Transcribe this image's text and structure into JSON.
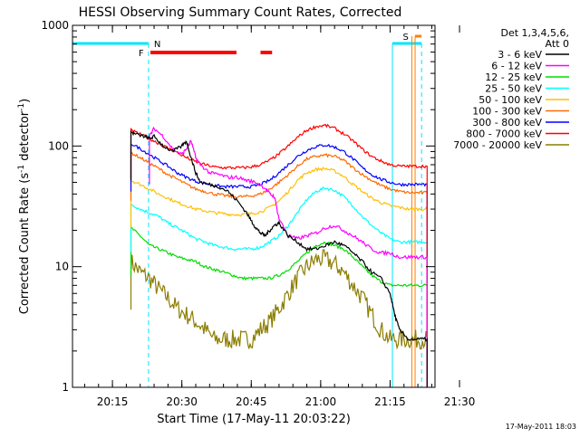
{
  "chart_data": {
    "type": "line",
    "title": "HESSI Observing Summary Count Rates, Corrected",
    "xlabel": "Start Time (17-May-11 20:03:22)",
    "ylabel_main": "Corrected Count Rate (s",
    "ylabel_sup1": "-1",
    "ylabel_mid": " detector",
    "ylabel_sup2": "-1",
    "ylabel_end": ")",
    "yscale": "log",
    "ylim": [
      1,
      1000
    ],
    "xlim_min": [
      3.37,
      81.7
    ],
    "x_ticks": [
      {
        "v": 12,
        "label": "20:15"
      },
      {
        "v": 27,
        "label": "20:30"
      },
      {
        "v": 42,
        "label": "20:45"
      },
      {
        "v": 57,
        "label": "21:00"
      },
      {
        "v": 72,
        "label": "21:15"
      },
      {
        "v": 87,
        "label": "21:30"
      }
    ],
    "y_ticks": [
      {
        "v": 1,
        "label": "1"
      },
      {
        "v": 10,
        "label": "10"
      },
      {
        "v": 100,
        "label": "100"
      },
      {
        "v": 1000,
        "label": "1000"
      }
    ],
    "legend_title": "Det 1,3,4,5,6,",
    "legend_subtitle": "Att 0",
    "series": [
      {
        "name": "3 - 6 keV",
        "color": "#000000",
        "x": [
          16,
          17,
          19,
          20,
          21,
          23,
          25,
          27,
          28,
          29,
          30,
          31,
          33,
          35,
          37,
          39,
          41,
          42,
          43,
          44,
          45,
          46,
          47,
          48,
          50,
          52,
          54,
          56,
          58,
          60,
          62,
          64,
          66,
          68,
          70,
          72,
          73,
          74,
          76,
          78,
          80
        ],
        "y": [
          130,
          125,
          120,
          115,
          120,
          100,
          90,
          100,
          110,
          80,
          60,
          50,
          48,
          46,
          42,
          35,
          28,
          24,
          21,
          19,
          18,
          20,
          22,
          23,
          18,
          16,
          14,
          14,
          15,
          16,
          15,
          13,
          11,
          9,
          8,
          6,
          4,
          3,
          2.5,
          2.5,
          2.5
        ]
      },
      {
        "name": "6 - 12 keV",
        "color": "#ff00ff",
        "x": [
          20,
          21,
          23,
          25,
          27,
          28,
          29,
          30,
          31,
          33,
          35,
          37,
          39,
          41,
          43,
          45,
          46,
          47,
          48,
          50,
          52,
          54,
          56,
          58,
          60,
          62,
          64,
          66,
          68,
          70,
          72,
          74,
          76,
          78,
          80
        ],
        "y": [
          120,
          140,
          120,
          95,
          85,
          95,
          110,
          80,
          70,
          60,
          58,
          55,
          55,
          52,
          50,
          45,
          40,
          38,
          25,
          18,
          17,
          18,
          19,
          21,
          22,
          20,
          18,
          16,
          14,
          13,
          13,
          12,
          12,
          12,
          12
        ]
      },
      {
        "name": "12 - 25 keV",
        "color": "#00dd00",
        "x": [
          16,
          18,
          20,
          22,
          24,
          26,
          28,
          30,
          32,
          34,
          36,
          38,
          40,
          42,
          44,
          46,
          48,
          50,
          52,
          54,
          56,
          58,
          60,
          62,
          64,
          66,
          68,
          70,
          72,
          74,
          76,
          78,
          80
        ],
        "y": [
          21,
          18,
          15,
          14,
          13,
          12,
          11.5,
          11,
          10,
          9.5,
          9,
          8.5,
          8,
          8,
          8,
          8,
          8.5,
          9.5,
          11,
          13,
          15,
          16,
          15,
          14,
          12,
          10,
          8.5,
          7.5,
          7,
          7,
          7,
          7,
          7
        ]
      },
      {
        "name": "25 - 50 keV",
        "color": "#00ffff",
        "x": [
          16,
          18,
          20,
          22,
          24,
          26,
          28,
          30,
          32,
          34,
          36,
          38,
          40,
          42,
          44,
          46,
          48,
          50,
          52,
          54,
          56,
          58,
          60,
          62,
          64,
          66,
          68,
          70,
          72,
          74,
          76,
          78,
          80
        ],
        "y": [
          33,
          30,
          28,
          26,
          23,
          21,
          19,
          17,
          16,
          15,
          14.5,
          14,
          14,
          14,
          14.5,
          16,
          18,
          22,
          28,
          36,
          42,
          45,
          43,
          38,
          32,
          26,
          22,
          19,
          17,
          16,
          16,
          16,
          16
        ]
      },
      {
        "name": "50 - 100 keV",
        "color": "#ffc000",
        "x": [
          16,
          18,
          20,
          22,
          24,
          26,
          28,
          30,
          32,
          34,
          36,
          38,
          40,
          42,
          44,
          46,
          48,
          50,
          52,
          54,
          56,
          58,
          60,
          62,
          64,
          66,
          68,
          70,
          72,
          74,
          76,
          78,
          80
        ],
        "y": [
          52,
          48,
          44,
          40,
          37,
          34,
          32,
          30,
          29,
          28,
          27.5,
          27,
          27,
          27.5,
          28.5,
          31,
          35,
          42,
          52,
          60,
          64,
          65,
          62,
          56,
          48,
          42,
          37,
          34,
          32,
          31,
          30,
          30,
          30
        ]
      },
      {
        "name": "100 - 300 keV",
        "color": "#ff6a00",
        "x": [
          16,
          18,
          20,
          22,
          24,
          26,
          28,
          30,
          32,
          34,
          36,
          38,
          40,
          42,
          44,
          46,
          48,
          50,
          52,
          54,
          56,
          58,
          60,
          62,
          64,
          66,
          68,
          70,
          72,
          74,
          76,
          78,
          80
        ],
        "y": [
          88,
          80,
          72,
          65,
          58,
          53,
          48,
          44,
          42,
          40,
          39,
          38,
          38,
          38.5,
          40,
          44,
          50,
          58,
          68,
          78,
          82,
          84,
          82,
          76,
          66,
          58,
          52,
          47,
          44,
          42,
          41,
          41,
          41
        ]
      },
      {
        "name": "300 - 800 keV",
        "color": "#0000ff",
        "x": [
          16,
          18,
          20,
          22,
          24,
          26,
          28,
          30,
          32,
          34,
          36,
          38,
          40,
          42,
          44,
          46,
          48,
          50,
          52,
          54,
          56,
          58,
          60,
          62,
          64,
          66,
          68,
          70,
          72,
          74,
          76,
          78,
          80
        ],
        "y": [
          105,
          95,
          85,
          76,
          68,
          60,
          55,
          51,
          49,
          47,
          46,
          46,
          46,
          46,
          48,
          52,
          60,
          70,
          82,
          92,
          99,
          102,
          98,
          90,
          78,
          66,
          58,
          53,
          50,
          48,
          48,
          48,
          48
        ]
      },
      {
        "name": "800 - 7000 keV",
        "color": "#ff0000",
        "x": [
          16,
          18,
          20,
          22,
          24,
          26,
          28,
          30,
          32,
          34,
          36,
          38,
          40,
          42,
          44,
          46,
          48,
          50,
          52,
          54,
          56,
          58,
          60,
          62,
          64,
          66,
          68,
          70,
          72,
          74,
          76,
          78,
          80
        ],
        "y": [
          135,
          125,
          115,
          105,
          96,
          88,
          80,
          74,
          70,
          67,
          66,
          66,
          66,
          67,
          70,
          76,
          86,
          100,
          118,
          135,
          145,
          148,
          140,
          126,
          110,
          94,
          82,
          75,
          70,
          68,
          68,
          68,
          68
        ]
      },
      {
        "name": "7000 - 20000 keV",
        "color": "#8b7d00",
        "x": [
          16,
          18,
          20,
          22,
          24,
          26,
          28,
          30,
          32,
          34,
          36,
          38,
          40,
          42,
          44,
          46,
          48,
          50,
          52,
          54,
          56,
          58,
          60,
          62,
          64,
          66,
          68,
          70,
          72,
          74,
          76,
          78,
          80
        ],
        "y": [
          11,
          9,
          8,
          6.5,
          5.5,
          4.5,
          4,
          3.5,
          3,
          2.5,
          2.5,
          2.5,
          2.5,
          2.5,
          3,
          3.5,
          4.5,
          6,
          8,
          10,
          11.5,
          11.5,
          10.5,
          9,
          7,
          5.5,
          4,
          3,
          2.5,
          2.5,
          2.5,
          2.5,
          2.5
        ]
      }
    ],
    "attenuator_label": "N",
    "flare_label": "F",
    "saa_label": "S",
    "footer_timestamp": "17-May-2011 18:03",
    "colors": {
      "attenuator": "#00e5ff",
      "flare": "#ff0000",
      "saa": "#ff8000"
    }
  }
}
